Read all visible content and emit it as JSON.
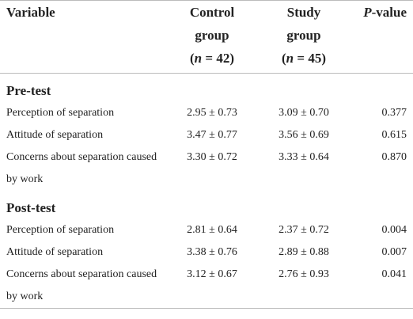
{
  "header": {
    "columns": [
      {
        "text": "Variable"
      },
      {
        "lines": [
          "Control",
          "group"
        ],
        "note": [
          "(",
          "n",
          " = 42)"
        ]
      },
      {
        "lines": [
          "Study",
          "group"
        ],
        "note": [
          "(",
          "n",
          " = 45)"
        ]
      },
      {
        "pieces": [
          "P",
          "-value"
        ]
      }
    ]
  },
  "sections": [
    {
      "title": "Pre-test",
      "rows": [
        [
          "Perception of separation",
          "2.95 ± 0.73",
          "3.09 ± 0.70",
          "0.377"
        ],
        [
          "Attitude of separation",
          "3.47 ± 0.77",
          "3.56 ± 0.69",
          "0.615"
        ],
        [
          "Concerns about separation caused by work",
          "3.30 ± 0.72",
          "3.33 ± 0.64",
          "0.870"
        ]
      ]
    },
    {
      "title": "Post-test",
      "rows": [
        [
          "Perception of separation",
          "2.81 ± 0.64",
          "2.37 ± 0.72",
          "0.004"
        ],
        [
          "Attitude of separation",
          "3.38 ± 0.76",
          "2.89 ± 0.88",
          "0.007"
        ],
        [
          "Concerns about separation caused by work",
          "3.12 ± 0.67",
          "2.76 ± 0.93",
          "0.041"
        ]
      ]
    }
  ]
}
